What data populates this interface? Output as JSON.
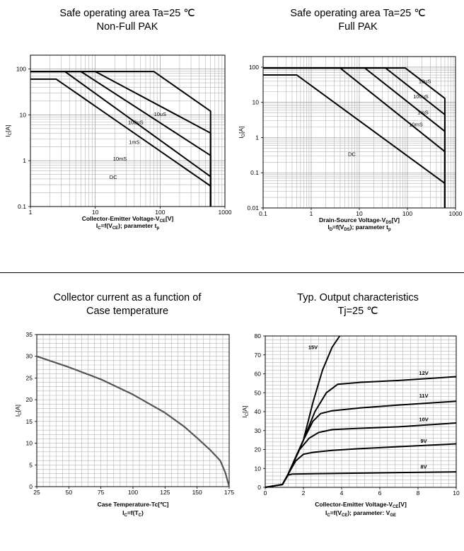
{
  "chart_data": [
    {
      "id": "soa_nonfull",
      "type": "line",
      "title": [
        "Safe operating area Ta=25 ℃",
        "Non-Full PAK"
      ],
      "xscale": "log",
      "yscale": "log",
      "xlim": [
        1,
        1000
      ],
      "ylim": [
        0.1,
        200
      ],
      "xticks": [
        1,
        10,
        100,
        1000
      ],
      "xtick_labels": [
        "1",
        "10",
        "100",
        "1000"
      ],
      "yticks": [
        0.1,
        1,
        10,
        100
      ],
      "ytick_labels": [
        "0.1",
        "1",
        "10",
        "100"
      ],
      "xlabel_main": "Collector-Emitter Voltage-V",
      "xlabel_sub": "CE",
      "xlabel_unit": "[V]",
      "xlabel2": [
        "I",
        "C",
        "=f(V",
        "CE",
        "); parameter t",
        "p"
      ],
      "ylabel": [
        "I",
        "C",
        "[A]"
      ],
      "series": [
        {
          "name": "10uS",
          "label_at": [
            100,
            9.5
          ],
          "points": [
            [
              1,
              88
            ],
            [
              80,
              88
            ],
            [
              600,
              12
            ],
            [
              600,
              0.1
            ]
          ]
        },
        {
          "name": "100uS",
          "label_at": [
            42,
            6.3
          ],
          "points": [
            [
              1,
              88
            ],
            [
              10,
              88
            ],
            [
              600,
              4
            ],
            [
              600,
              0.1
            ]
          ]
        },
        {
          "name": "1mS",
          "label_at": [
            40,
            2.3
          ],
          "points": [
            [
              1,
              88
            ],
            [
              6,
              88
            ],
            [
              600,
              1.3
            ],
            [
              600,
              0.1
            ]
          ]
        },
        {
          "name": "10mS",
          "label_at": [
            24,
            1.0
          ],
          "points": [
            [
              1,
              88
            ],
            [
              3.4,
              88
            ],
            [
              600,
              0.45
            ],
            [
              600,
              0.1
            ]
          ]
        },
        {
          "name": "DC",
          "label_at": [
            19,
            0.4
          ],
          "points": [
            [
              1,
              60
            ],
            [
              2.5,
              60
            ],
            [
              600,
              0.28
            ],
            [
              600,
              0.1
            ]
          ]
        }
      ]
    },
    {
      "id": "soa_full",
      "type": "line",
      "title": [
        "Safe operating area Ta=25 ℃",
        "Full PAK"
      ],
      "xscale": "log",
      "yscale": "log",
      "xlim": [
        0.1,
        1000
      ],
      "ylim": [
        0.01,
        200
      ],
      "xticks": [
        0.1,
        1,
        10,
        100,
        1000
      ],
      "xtick_labels": [
        "0.1",
        "1",
        "10",
        "100",
        "1000"
      ],
      "yticks": [
        0.01,
        0.1,
        1,
        10,
        100
      ],
      "ytick_labels": [
        "0.01",
        "0.1",
        "1",
        "10",
        "100"
      ],
      "xlabel_main": "Drain-Source Voltage-V",
      "xlabel_sub": "DS",
      "xlabel_unit": "[V]",
      "xlabel2": [
        "I",
        "D",
        "=f(V",
        "DS",
        "); parameter t",
        "p"
      ],
      "ylabel": [
        "I",
        "D",
        "[A]"
      ],
      "series": [
        {
          "name": "10uS",
          "label_at": [
            230,
            35
          ],
          "points": [
            [
              0.1,
              95
            ],
            [
              90,
              95
            ],
            [
              600,
              13
            ],
            [
              600,
              0.01
            ]
          ]
        },
        {
          "name": "100uS",
          "label_at": [
            190,
            13
          ],
          "points": [
            [
              0.1,
              95
            ],
            [
              35,
              95
            ],
            [
              600,
              4.5
            ],
            [
              600,
              0.01
            ]
          ]
        },
        {
          "name": "1mS",
          "label_at": [
            210,
            4.6
          ],
          "points": [
            [
              0.1,
              95
            ],
            [
              13,
              95
            ],
            [
              600,
              1.5
            ],
            [
              600,
              0.01
            ]
          ]
        },
        {
          "name": "10mS",
          "label_at": [
            150,
            2.1
          ],
          "points": [
            [
              0.1,
              95
            ],
            [
              4,
              95
            ],
            [
              600,
              0.4
            ],
            [
              600,
              0.01
            ]
          ]
        },
        {
          "name": "DC",
          "label_at": [
            7,
            0.3
          ],
          "points": [
            [
              0.1,
              60
            ],
            [
              0.5,
              60
            ],
            [
              600,
              0.05
            ],
            [
              600,
              0.01
            ]
          ]
        }
      ]
    },
    {
      "id": "ic_vs_tc",
      "type": "line",
      "title": [
        "Collector current as a function of",
        "Case temperature"
      ],
      "xlim": [
        25,
        175
      ],
      "ylim": [
        0,
        35
      ],
      "xticks": [
        25,
        50,
        75,
        100,
        125,
        150,
        175
      ],
      "xtick_labels": [
        "25",
        "50",
        "75",
        "100",
        "125",
        "150",
        "175"
      ],
      "yticks": [
        0,
        5,
        10,
        15,
        20,
        25,
        30,
        35
      ],
      "ytick_labels": [
        "0",
        "5",
        "10",
        "15",
        "20",
        "25",
        "30",
        "35"
      ],
      "xlabel_main": "Case Temperature-Tc[℃]",
      "xlabel_sub": "",
      "xlabel_unit": "",
      "xlabel2": [
        "I",
        "C",
        "=f(T",
        "C",
        ")",
        ""
      ],
      "ylabel": [
        "I",
        "C",
        "[A]"
      ],
      "series": [
        {
          "name": "Ic",
          "points": [
            [
              25,
              30
            ],
            [
              50,
              27.5
            ],
            [
              75,
              24.7
            ],
            [
              100,
              21.2
            ],
            [
              125,
              17
            ],
            [
              140,
              13.8
            ],
            [
              150,
              11.2
            ],
            [
              160,
              8.5
            ],
            [
              168,
              6
            ],
            [
              172,
              3.2
            ],
            [
              175,
              0
            ]
          ]
        }
      ]
    },
    {
      "id": "output_char",
      "type": "line",
      "title": [
        "Typ. Output characteristics",
        "Tj=25 ℃"
      ],
      "xlim": [
        0,
        10
      ],
      "ylim": [
        0,
        80
      ],
      "xticks": [
        0,
        2,
        4,
        6,
        8,
        10
      ],
      "xtick_labels": [
        "0",
        "2",
        "4",
        "6",
        "8",
        "10"
      ],
      "yticks": [
        0,
        10,
        20,
        30,
        40,
        50,
        60,
        70,
        80
      ],
      "ytick_labels": [
        "0",
        "10",
        "20",
        "30",
        "40",
        "50",
        "60",
        "70",
        "80"
      ],
      "xlabel_main": "Collector-Emitter Voltage-V",
      "xlabel_sub": "CE",
      "xlabel_unit": "[V]",
      "xlabel2": [
        "I",
        "C",
        "=f(V",
        "CE",
        "); parameter: V",
        "GE"
      ],
      "ylabel": [
        "I",
        "C",
        "[A]"
      ],
      "series": [
        {
          "name": "15V",
          "label_at": [
            2.5,
            73
          ],
          "points": [
            [
              0,
              0
            ],
            [
              0.9,
              1.5
            ],
            [
              1.2,
              7
            ],
            [
              2,
              25
            ],
            [
              2.5,
              45
            ],
            [
              3,
              62
            ],
            [
              3.5,
              74
            ],
            [
              3.9,
              80
            ]
          ]
        },
        {
          "name": "12V",
          "label_at": [
            8.3,
            59.5
          ],
          "points": [
            [
              0,
              0
            ],
            [
              0.9,
              1.5
            ],
            [
              1.2,
              7
            ],
            [
              2,
              25
            ],
            [
              2.6,
              40
            ],
            [
              3.2,
              50
            ],
            [
              3.8,
              54.5
            ],
            [
              5,
              55.5
            ],
            [
              7,
              56.5
            ],
            [
              10,
              58.5
            ]
          ]
        },
        {
          "name": "11V",
          "label_at": [
            8.3,
            47.5
          ],
          "points": [
            [
              0,
              0
            ],
            [
              0.9,
              1.5
            ],
            [
              1.2,
              7
            ],
            [
              2,
              25
            ],
            [
              2.5,
              35
            ],
            [
              2.9,
              39
            ],
            [
              3.5,
              40.5
            ],
            [
              5,
              42
            ],
            [
              7,
              43.5
            ],
            [
              10,
              45.5
            ]
          ]
        },
        {
          "name": "10V",
          "label_at": [
            8.3,
            35
          ],
          "points": [
            [
              0,
              0
            ],
            [
              0.9,
              1.5
            ],
            [
              1.2,
              7
            ],
            [
              1.8,
              20
            ],
            [
              2.3,
              26
            ],
            [
              2.8,
              29
            ],
            [
              3.5,
              30.5
            ],
            [
              5,
              31.2
            ],
            [
              7,
              32
            ],
            [
              10,
              34
            ]
          ]
        },
        {
          "name": "9V",
          "label_at": [
            8.3,
            23.5
          ],
          "points": [
            [
              0,
              0
            ],
            [
              0.9,
              1.5
            ],
            [
              1.2,
              7
            ],
            [
              1.6,
              14
            ],
            [
              2,
              17.5
            ],
            [
              2.5,
              18.5
            ],
            [
              3.5,
              19.5
            ],
            [
              5,
              20.5
            ],
            [
              7,
              21.5
            ],
            [
              10,
              23
            ]
          ]
        },
        {
          "name": "8V",
          "label_at": [
            8.3,
            10
          ],
          "points": [
            [
              0,
              0
            ],
            [
              0.9,
              1.5
            ],
            [
              1.2,
              6.5
            ],
            [
              1.4,
              7
            ],
            [
              2.5,
              7.2
            ],
            [
              5,
              7.5
            ],
            [
              7,
              7.8
            ],
            [
              10,
              8.2
            ]
          ]
        }
      ]
    }
  ]
}
